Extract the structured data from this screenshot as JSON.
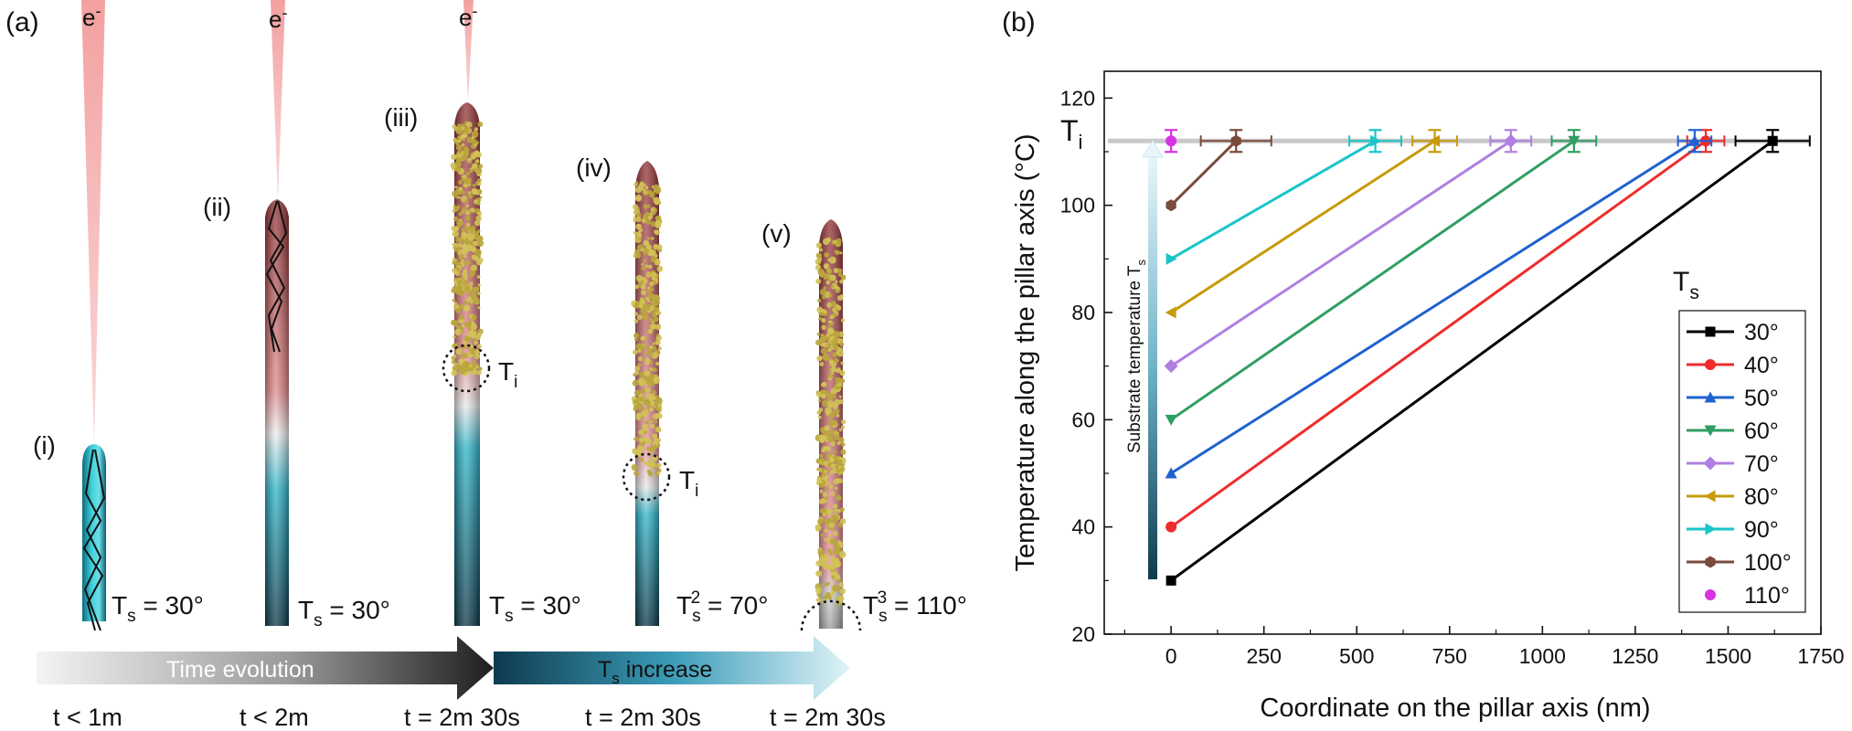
{
  "panel_a": {
    "label": "(a)",
    "electron": "e",
    "electron_sup": "-",
    "stages": [
      {
        "label": "(i)",
        "temp_main": "T",
        "temp_sub": "s",
        "temp_sup": "",
        "temp_value": " = 30°",
        "time": "t < 1m"
      },
      {
        "label": "(ii)",
        "temp_main": "T",
        "temp_sub": "s",
        "temp_sup": "",
        "temp_value": " = 30°",
        "time": "t < 2m"
      },
      {
        "label": "(iii)",
        "temp_main": "T",
        "temp_sub": "s",
        "temp_sup": "",
        "temp_value": " = 30°",
        "time": "t = 2m 30s"
      },
      {
        "label": "(iv)",
        "temp_main": "T",
        "temp_sub": "s",
        "temp_sup": "2",
        "temp_value": " = 70°",
        "time": "t = 2m 30s"
      },
      {
        "label": "(v)",
        "temp_main": "T",
        "temp_sub": "s",
        "temp_sup": "3",
        "temp_value": " = 110°",
        "time": "t = 2m 30s"
      }
    ],
    "ti_main": "T",
    "ti_sub": "i",
    "arrow_time": "Time evolution",
    "arrow_ts_main": "T",
    "arrow_ts_sub": "s",
    "arrow_ts_rest": " increase"
  },
  "panel_b": {
    "label": "(b)",
    "ti_main": "T",
    "ti_sub": "i",
    "vertical_arrow_label": "Substrate temperature T",
    "vertical_arrow_sub": "s",
    "legend_title_main": "T",
    "legend_title_sub": "s"
  },
  "chart_data": {
    "type": "line",
    "title": "",
    "xlabel": "Coordinate on the pillar axis (nm)",
    "ylabel": "Temperature along the pillar axis (°C)",
    "xlim": [
      -180,
      1750
    ],
    "ylim": [
      20,
      125
    ],
    "xticks": [
      0,
      250,
      500,
      750,
      1000,
      1250,
      1500,
      1750
    ],
    "yticks": [
      20,
      40,
      60,
      80,
      100,
      120
    ],
    "ti_value": 112,
    "series": [
      {
        "name": "30°",
        "color": "#000000",
        "marker": "square",
        "x": [
          0,
          1620
        ],
        "y": [
          30,
          112
        ],
        "xerr": 100
      },
      {
        "name": "40°",
        "color": "#ee2c2c",
        "marker": "circle",
        "x": [
          0,
          1440
        ],
        "y": [
          40,
          112
        ],
        "xerr": 50
      },
      {
        "name": "50°",
        "color": "#1f62cf",
        "marker": "triangle-up",
        "x": [
          0,
          1410
        ],
        "y": [
          50,
          112
        ],
        "xerr": 45
      },
      {
        "name": "60°",
        "color": "#2f9e63",
        "marker": "triangle-down",
        "x": [
          0,
          1085
        ],
        "y": [
          60,
          112
        ],
        "xerr": 60
      },
      {
        "name": "70°",
        "color": "#b07fe2",
        "marker": "diamond",
        "x": [
          0,
          915
        ],
        "y": [
          70,
          112
        ],
        "xerr": 55
      },
      {
        "name": "80°",
        "color": "#c79a0a",
        "marker": "triangle-left",
        "x": [
          0,
          710
        ],
        "y": [
          80,
          112
        ],
        "xerr": 60
      },
      {
        "name": "90°",
        "color": "#19c5c8",
        "marker": "triangle-right",
        "x": [
          0,
          550
        ],
        "y": [
          90,
          112
        ],
        "xerr": 70
      },
      {
        "name": "100°",
        "color": "#7a4a3c",
        "marker": "hexagon",
        "x": [
          0,
          175
        ],
        "y": [
          100,
          112
        ],
        "xerr": 95
      },
      {
        "name": "110°",
        "color": "#d632e3",
        "marker": "circle",
        "x": [
          0
        ],
        "y": [
          112
        ],
        "xerr": 0
      }
    ]
  }
}
